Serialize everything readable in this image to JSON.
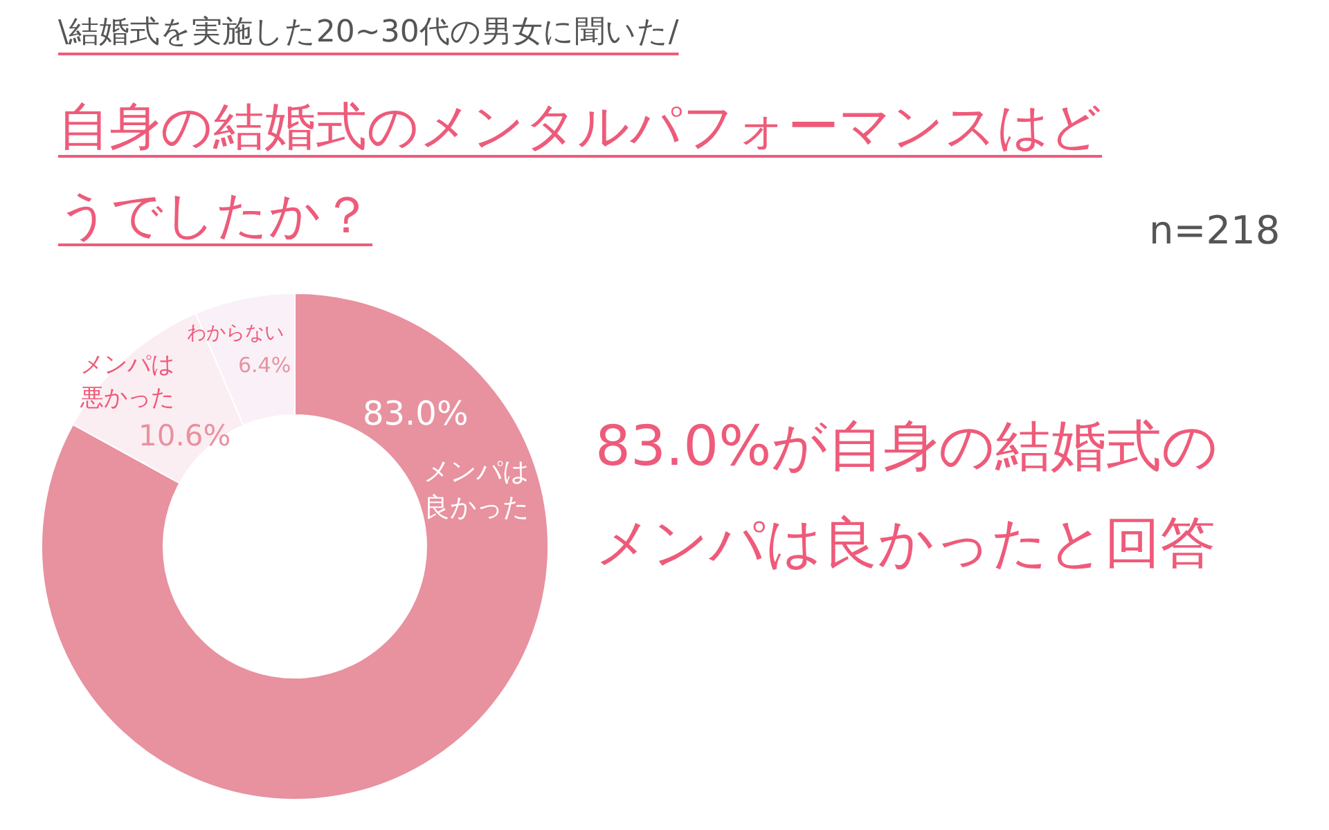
{
  "chart_data": {
    "type": "donut",
    "subtitle": "\\結婚式を実施した20~30代の男女に聞いた/",
    "title": "自身の結婚式のメンタルパフォーマンスはどうでしたか？",
    "categories": [
      "メンパは良かった",
      "メンパは悪かった",
      "わからない"
    ],
    "values": [
      83.0,
      10.6,
      6.4
    ],
    "colors": [
      "#e8919f",
      "#fbeef3",
      "#f9f1f7"
    ],
    "value_labels": [
      "83.0%",
      "10.6%",
      "6.4%"
    ],
    "annotations": [
      "n=218",
      "83.0%が自身の結婚式の",
      "メンパは良かったと回答"
    ]
  }
}
